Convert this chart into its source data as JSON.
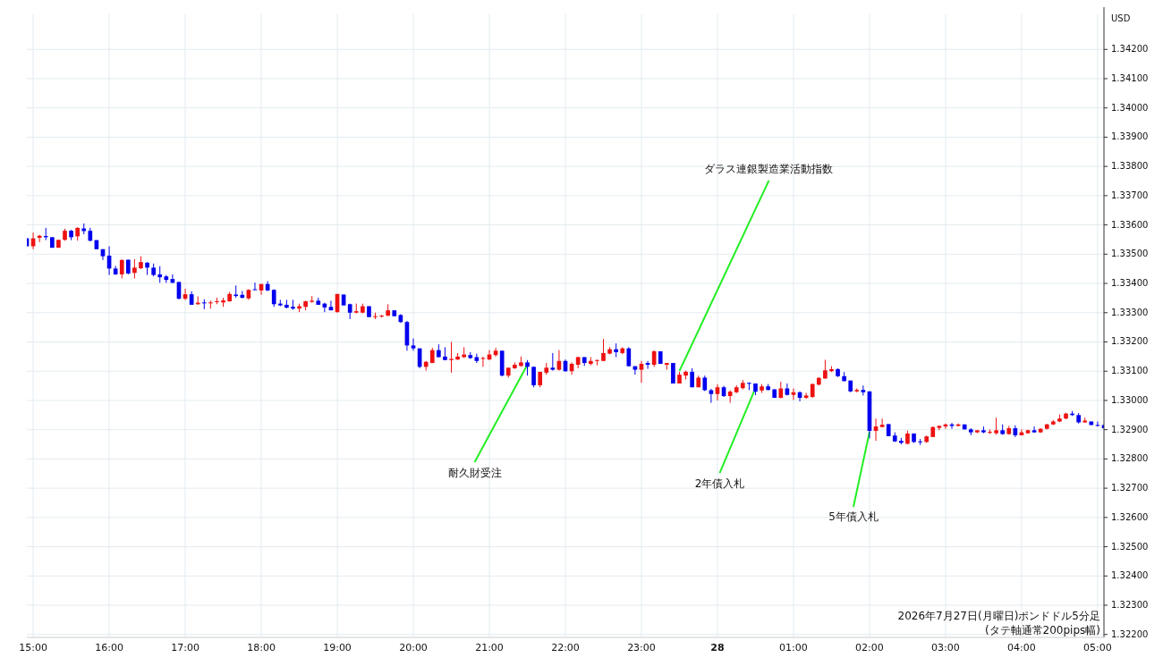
{
  "chart_data": {
    "type": "candlestick",
    "ylabel": "USD",
    "x": [
      "2026-07-27T14:55",
      "2026-07-27T15:00",
      "2026-07-27T15:05",
      "2026-07-27T15:10",
      "2026-07-27T15:15",
      "2026-07-27T15:20",
      "2026-07-27T15:25",
      "2026-07-27T15:30",
      "2026-07-27T15:35",
      "2026-07-27T15:40",
      "2026-07-27T15:45",
      "2026-07-27T15:50",
      "2026-07-27T15:55",
      "2026-07-27T16:00",
      "2026-07-27T16:05",
      "2026-07-27T16:10",
      "2026-07-27T16:15",
      "2026-07-27T16:20",
      "2026-07-27T16:25",
      "2026-07-27T16:30",
      "2026-07-27T16:35",
      "2026-07-27T16:40",
      "2026-07-27T16:45",
      "2026-07-27T16:50",
      "2026-07-27T16:55",
      "2026-07-27T17:00",
      "2026-07-27T17:05",
      "2026-07-27T17:10",
      "2026-07-27T17:15",
      "2026-07-27T17:20",
      "2026-07-27T17:25",
      "2026-07-27T17:30",
      "2026-07-27T17:35",
      "2026-07-27T17:40",
      "2026-07-27T17:45",
      "2026-07-27T17:50",
      "2026-07-27T17:55",
      "2026-07-27T18:00",
      "2026-07-27T18:05",
      "2026-07-27T18:10",
      "2026-07-27T18:15",
      "2026-07-27T18:20",
      "2026-07-27T18:25",
      "2026-07-27T18:30",
      "2026-07-27T18:35",
      "2026-07-27T18:40",
      "2026-07-27T18:45",
      "2026-07-27T18:50",
      "2026-07-27T18:55",
      "2026-07-27T19:00",
      "2026-07-27T19:05",
      "2026-07-27T19:10",
      "2026-07-27T19:15",
      "2026-07-27T19:20",
      "2026-07-27T19:25",
      "2026-07-27T19:30",
      "2026-07-27T19:35",
      "2026-07-27T19:40",
      "2026-07-27T19:45",
      "2026-07-27T19:50",
      "2026-07-27T19:55",
      "2026-07-27T20:00",
      "2026-07-27T20:05",
      "2026-07-27T20:10",
      "2026-07-27T20:15",
      "2026-07-27T20:20",
      "2026-07-27T20:25",
      "2026-07-27T20:30",
      "2026-07-27T20:35",
      "2026-07-27T20:40",
      "2026-07-27T20:45",
      "2026-07-27T20:50",
      "2026-07-27T20:55",
      "2026-07-27T21:00",
      "2026-07-27T21:05",
      "2026-07-27T21:10",
      "2026-07-27T21:15",
      "2026-07-27T21:20",
      "2026-07-27T21:25",
      "2026-07-27T21:30",
      "2026-07-27T21:35",
      "2026-07-27T21:40",
      "2026-07-27T21:45",
      "2026-07-27T21:50",
      "2026-07-27T21:55",
      "2026-07-27T22:00",
      "2026-07-27T22:05",
      "2026-07-27T22:10",
      "2026-07-27T22:15",
      "2026-07-27T22:20",
      "2026-07-27T22:25",
      "2026-07-27T22:30",
      "2026-07-27T22:35",
      "2026-07-27T22:40",
      "2026-07-27T22:45",
      "2026-07-27T22:50",
      "2026-07-27T22:55",
      "2026-07-27T23:00",
      "2026-07-27T23:05",
      "2026-07-27T23:10",
      "2026-07-27T23:15",
      "2026-07-27T23:20",
      "2026-07-27T23:25",
      "2026-07-27T23:30",
      "2026-07-27T23:35",
      "2026-07-27T23:40",
      "2026-07-27T23:45",
      "2026-07-27T23:50",
      "2026-07-27T23:55",
      "2026-07-28T00:00",
      "2026-07-28T00:05",
      "2026-07-28T00:10",
      "2026-07-28T00:15",
      "2026-07-28T00:20",
      "2026-07-28T00:25",
      "2026-07-28T00:30",
      "2026-07-28T00:35",
      "2026-07-28T00:40",
      "2026-07-28T00:45",
      "2026-07-28T00:50",
      "2026-07-28T00:55",
      "2026-07-28T01:00",
      "2026-07-28T01:05",
      "2026-07-28T01:10",
      "2026-07-28T01:15",
      "2026-07-28T01:20",
      "2026-07-28T01:25",
      "2026-07-28T01:30",
      "2026-07-28T01:35",
      "2026-07-28T01:40",
      "2026-07-28T01:45",
      "2026-07-28T01:50",
      "2026-07-28T01:55",
      "2026-07-28T02:00",
      "2026-07-28T02:05",
      "2026-07-28T02:10",
      "2026-07-28T02:15",
      "2026-07-28T02:20",
      "2026-07-28T02:25",
      "2026-07-28T02:30",
      "2026-07-28T02:35",
      "2026-07-28T02:40",
      "2026-07-28T02:45",
      "2026-07-28T02:50",
      "2026-07-28T02:55",
      "2026-07-28T03:00",
      "2026-07-28T03:05",
      "2026-07-28T03:10",
      "2026-07-28T03:15",
      "2026-07-28T03:20",
      "2026-07-28T03:25",
      "2026-07-28T03:30",
      "2026-07-28T03:35",
      "2026-07-28T03:40",
      "2026-07-28T03:45",
      "2026-07-28T03:50",
      "2026-07-28T03:55",
      "2026-07-28T04:00",
      "2026-07-28T04:05",
      "2026-07-28T04:10",
      "2026-07-28T04:15",
      "2026-07-28T04:20",
      "2026-07-28T04:25",
      "2026-07-28T04:30",
      "2026-07-28T04:35",
      "2026-07-28T04:40",
      "2026-07-28T04:45",
      "2026-07-28T04:50",
      "2026-07-28T04:55",
      "2026-07-28T05:00",
      "2026-07-28T05:05"
    ],
    "ohlc": [
      [
        1.33554,
        1.33556,
        1.33527,
        1.33527
      ],
      [
        1.33527,
        1.33574,
        1.33517,
        1.33554
      ],
      [
        1.33556,
        1.33566,
        1.33541,
        1.33563
      ],
      [
        1.33562,
        1.3359,
        1.33548,
        1.33558
      ],
      [
        1.33558,
        1.33558,
        1.33522,
        1.33522
      ],
      [
        1.33522,
        1.33549,
        1.33522,
        1.33549
      ],
      [
        1.33549,
        1.33587,
        1.33546,
        1.3358
      ],
      [
        1.3358,
        1.33583,
        1.33548,
        1.33558
      ],
      [
        1.33561,
        1.33592,
        1.33546,
        1.3359
      ],
      [
        1.33588,
        1.33605,
        1.33568,
        1.33579
      ],
      [
        1.3358,
        1.3359,
        1.33544,
        1.33546
      ],
      [
        1.33548,
        1.33548,
        1.33517,
        1.33517
      ],
      [
        1.33517,
        1.33517,
        1.3348,
        1.33493
      ],
      [
        1.33495,
        1.33527,
        1.33429,
        1.33451
      ],
      [
        1.33451,
        1.3346,
        1.33429,
        1.33431
      ],
      [
        1.33431,
        1.33483,
        1.33417,
        1.3348
      ],
      [
        1.33481,
        1.33481,
        1.33431,
        1.33434
      ],
      [
        1.33436,
        1.33483,
        1.33417,
        1.33454
      ],
      [
        1.33452,
        1.33493,
        1.33449,
        1.33473
      ],
      [
        1.33471,
        1.33473,
        1.33429,
        1.33454
      ],
      [
        1.33454,
        1.33468,
        1.33424,
        1.33429
      ],
      [
        1.33431,
        1.33459,
        1.33402,
        1.33421
      ],
      [
        1.33424,
        1.33429,
        1.33402,
        1.33412
      ],
      [
        1.33415,
        1.33431,
        1.33402,
        1.33402
      ],
      [
        1.33405,
        1.33405,
        1.33345,
        1.33348
      ],
      [
        1.33348,
        1.33382,
        1.33343,
        1.33363
      ],
      [
        1.33363,
        1.33373,
        1.33327,
        1.33327
      ],
      [
        1.33329,
        1.33356,
        1.33327,
        1.33334
      ],
      [
        1.33335,
        1.33346,
        1.33312,
        1.33332
      ],
      [
        1.33332,
        1.33341,
        1.33314,
        1.33335
      ],
      [
        1.33337,
        1.33351,
        1.33329,
        1.33339
      ],
      [
        1.33335,
        1.33351,
        1.3332,
        1.33342
      ],
      [
        1.33339,
        1.33371,
        1.33337,
        1.33364
      ],
      [
        1.33362,
        1.33393,
        1.33351,
        1.33357
      ],
      [
        1.33361,
        1.33374,
        1.33349,
        1.33351
      ],
      [
        1.33349,
        1.3338,
        1.33344,
        1.33378
      ],
      [
        1.3338,
        1.33403,
        1.33378,
        1.33378
      ],
      [
        1.33376,
        1.33398,
        1.33361,
        1.33398
      ],
      [
        1.33398,
        1.33408,
        1.33374,
        1.33376
      ],
      [
        1.33378,
        1.3338,
        1.3332,
        1.33329
      ],
      [
        1.33331,
        1.33344,
        1.33322,
        1.33325
      ],
      [
        1.33327,
        1.33344,
        1.33315,
        1.33317
      ],
      [
        1.3332,
        1.33344,
        1.3331,
        1.33314
      ],
      [
        1.33314,
        1.33331,
        1.33302,
        1.33322
      ],
      [
        1.3332,
        1.33341,
        1.33308,
        1.33339
      ],
      [
        1.33337,
        1.33357,
        1.33334,
        1.33341
      ],
      [
        1.33341,
        1.33351,
        1.33327,
        1.33327
      ],
      [
        1.33331,
        1.33334,
        1.33302,
        1.33318
      ],
      [
        1.3332,
        1.33341,
        1.33308,
        1.33308
      ],
      [
        1.33302,
        1.33364,
        1.333,
        1.33364
      ],
      [
        1.33362,
        1.33362,
        1.33325,
        1.33325
      ],
      [
        1.33329,
        1.33331,
        1.33278,
        1.333
      ],
      [
        1.333,
        1.33331,
        1.33298,
        1.33305
      ],
      [
        1.333,
        1.33331,
        1.33298,
        1.33322
      ],
      [
        1.33322,
        1.33322,
        1.33285,
        1.33285
      ],
      [
        1.33285,
        1.333,
        1.33278,
        1.33288
      ],
      [
        1.33287,
        1.33292,
        1.33283,
        1.3329
      ],
      [
        1.3329,
        1.33329,
        1.33288,
        1.33308
      ],
      [
        1.33308,
        1.33308,
        1.33288,
        1.33288
      ],
      [
        1.33292,
        1.33295,
        1.33265,
        1.33268
      ],
      [
        1.33268,
        1.33272,
        1.3317,
        1.33188
      ],
      [
        1.33188,
        1.33212,
        1.3317,
        1.33178
      ],
      [
        1.33178,
        1.33178,
        1.3311,
        1.33115
      ],
      [
        1.33115,
        1.33135,
        1.33102,
        1.33132
      ],
      [
        1.33128,
        1.3318,
        1.33128,
        1.33172
      ],
      [
        1.33172,
        1.33192,
        1.33148,
        1.33148
      ],
      [
        1.3315,
        1.33182,
        1.33138,
        1.33138
      ],
      [
        1.33138,
        1.332,
        1.33095,
        1.33142
      ],
      [
        1.3314,
        1.33162,
        1.33138,
        1.3315
      ],
      [
        1.33148,
        1.33182,
        1.33145,
        1.33157
      ],
      [
        1.33155,
        1.33165,
        1.33142,
        1.33145
      ],
      [
        1.33148,
        1.3316,
        1.33128,
        1.33135
      ],
      [
        1.33142,
        1.3315,
        1.33115,
        1.33145
      ],
      [
        1.3314,
        1.33172,
        1.33138,
        1.33157
      ],
      [
        1.33155,
        1.3318,
        1.3315,
        1.3317
      ],
      [
        1.3317,
        1.3317,
        1.33082,
        1.33085
      ],
      [
        1.33085,
        1.33112,
        1.33078,
        1.33112
      ],
      [
        1.3311,
        1.3313,
        1.33108,
        1.33122
      ],
      [
        1.33118,
        1.3315,
        1.33115,
        1.3313
      ],
      [
        1.3313,
        1.33138,
        1.33085,
        1.33115
      ],
      [
        1.33115,
        1.33115,
        1.33045,
        1.33052
      ],
      [
        1.33052,
        1.33098,
        1.33045,
        1.33098
      ],
      [
        1.33095,
        1.33128,
        1.33088,
        1.33112
      ],
      [
        1.33112,
        1.33162,
        1.33102,
        1.33105
      ],
      [
        1.33105,
        1.33172,
        1.33102,
        1.33135
      ],
      [
        1.33135,
        1.3314,
        1.33098,
        1.331
      ],
      [
        1.331,
        1.3313,
        1.33088,
        1.33125
      ],
      [
        1.33122,
        1.3315,
        1.3311,
        1.33148
      ],
      [
        1.33148,
        1.33148,
        1.33118,
        1.33128
      ],
      [
        1.33125,
        1.33148,
        1.3312,
        1.33135
      ],
      [
        1.33135,
        1.3314,
        1.3312,
        1.33138
      ],
      [
        1.33135,
        1.3321,
        1.33135,
        1.33162
      ],
      [
        1.3316,
        1.33182,
        1.33158,
        1.33175
      ],
      [
        1.33175,
        1.33195,
        1.33148,
        1.33165
      ],
      [
        1.33162,
        1.33182,
        1.33158,
        1.33178
      ],
      [
        1.33178,
        1.33182,
        1.33117,
        1.33117
      ],
      [
        1.33117,
        1.33117,
        1.33088,
        1.33105
      ],
      [
        1.33105,
        1.33135,
        1.3306,
        1.33125
      ],
      [
        1.33128,
        1.33135,
        1.33108,
        1.33122
      ],
      [
        1.33122,
        1.33172,
        1.33115,
        1.33168
      ],
      [
        1.33168,
        1.33168,
        1.33125,
        1.33125
      ],
      [
        1.33122,
        1.33128,
        1.33105,
        1.33128
      ],
      [
        1.33128,
        1.33128,
        1.33058,
        1.33058
      ],
      [
        1.33058,
        1.33098,
        1.33058,
        1.33088
      ],
      [
        1.33085,
        1.33102,
        1.33072,
        1.33098
      ],
      [
        1.33098,
        1.3311,
        1.33045,
        1.33045
      ],
      [
        1.33045,
        1.33085,
        1.33045,
        1.33078
      ],
      [
        1.33078,
        1.33085,
        1.33032,
        1.33035
      ],
      [
        1.33035,
        1.3304,
        1.32992,
        1.33022
      ],
      [
        1.33022,
        1.33055,
        1.33,
        1.33045
      ],
      [
        1.33045,
        1.3305,
        1.33012,
        1.33015
      ],
      [
        1.33015,
        1.33035,
        1.32992,
        1.3303
      ],
      [
        1.33028,
        1.33052,
        1.33025,
        1.33045
      ],
      [
        1.33042,
        1.3307,
        1.33038,
        1.3306
      ],
      [
        1.3306,
        1.33062,
        1.33035,
        1.33058
      ],
      [
        1.33058,
        1.33058,
        1.33018,
        1.3303
      ],
      [
        1.33034,
        1.33056,
        1.33026,
        1.33048
      ],
      [
        1.33048,
        1.33056,
        1.33034,
        1.33036
      ],
      [
        1.33038,
        1.33038,
        1.33009,
        1.33009
      ],
      [
        1.33009,
        1.33064,
        1.33007,
        1.33041
      ],
      [
        1.33041,
        1.33058,
        1.33017,
        1.33019
      ],
      [
        1.33019,
        1.33041,
        1.33002,
        1.33028
      ],
      [
        1.33028,
        1.33031,
        1.32997,
        1.33009
      ],
      [
        1.33009,
        1.33026,
        1.33005,
        1.33017
      ],
      [
        1.33012,
        1.33058,
        1.33009,
        1.33056
      ],
      [
        1.33054,
        1.3308,
        1.33051,
        1.33077
      ],
      [
        1.33075,
        1.33139,
        1.33074,
        1.33103
      ],
      [
        1.331,
        1.33117,
        1.33097,
        1.33107
      ],
      [
        1.33107,
        1.3311,
        1.3308,
        1.33083
      ],
      [
        1.33083,
        1.33097,
        1.33066,
        1.33066
      ],
      [
        1.33068,
        1.33068,
        1.33028,
        1.33031
      ],
      [
        1.33031,
        1.33041,
        1.33028,
        1.33036
      ],
      [
        1.33036,
        1.33051,
        1.33017,
        1.33028
      ],
      [
        1.33031,
        1.33031,
        1.3287,
        1.32896
      ],
      [
        1.32896,
        1.32938,
        1.32862,
        1.32911
      ],
      [
        1.32909,
        1.32938,
        1.32909,
        1.32917
      ],
      [
        1.32919,
        1.32919,
        1.32878,
        1.32878
      ],
      [
        1.3288,
        1.32891,
        1.32858,
        1.3286
      ],
      [
        1.32862,
        1.32872,
        1.3285,
        1.32855
      ],
      [
        1.32852,
        1.32897,
        1.3285,
        1.32887
      ],
      [
        1.32887,
        1.32887,
        1.32855,
        1.32858
      ],
      [
        1.3286,
        1.32868,
        1.32848,
        1.32858
      ],
      [
        1.32858,
        1.3288,
        1.32855,
        1.32877
      ],
      [
        1.32875,
        1.32911,
        1.32875,
        1.32909
      ],
      [
        1.32906,
        1.32915,
        1.32898,
        1.32913
      ],
      [
        1.32911,
        1.32921,
        1.32903,
        1.32918
      ],
      [
        1.32918,
        1.32923,
        1.32903,
        1.32913
      ],
      [
        1.32913,
        1.32921,
        1.32911,
        1.32918
      ],
      [
        1.32918,
        1.32918,
        1.32901,
        1.32901
      ],
      [
        1.32901,
        1.32905,
        1.32881,
        1.32891
      ],
      [
        1.32891,
        1.32898,
        1.32888,
        1.32898
      ],
      [
        1.32898,
        1.32911,
        1.32888,
        1.32891
      ],
      [
        1.3289,
        1.32901,
        1.32885,
        1.32893
      ],
      [
        1.32888,
        1.32941,
        1.32883,
        1.32898
      ],
      [
        1.32898,
        1.32918,
        1.32883,
        1.32885
      ],
      [
        1.32885,
        1.32913,
        1.32883,
        1.32905
      ],
      [
        1.32905,
        1.32915,
        1.32875,
        1.32881
      ],
      [
        1.32881,
        1.32901,
        1.32881,
        1.32891
      ],
      [
        1.32888,
        1.329,
        1.32886,
        1.32898
      ],
      [
        1.32898,
        1.32911,
        1.32889,
        1.32891
      ],
      [
        1.32891,
        1.32905,
        1.32889,
        1.32903
      ],
      [
        1.32903,
        1.3292,
        1.32901,
        1.32918
      ],
      [
        1.32918,
        1.32933,
        1.32916,
        1.32928
      ],
      [
        1.32928,
        1.32952,
        1.32926,
        1.32938
      ],
      [
        1.32938,
        1.32958,
        1.32936,
        1.32955
      ],
      [
        1.32955,
        1.32964,
        1.32947,
        1.3295
      ],
      [
        1.3295,
        1.32957,
        1.32921,
        1.32925
      ],
      [
        1.32925,
        1.32941,
        1.32923,
        1.32931
      ],
      [
        1.32928,
        1.32928,
        1.32916,
        1.32916
      ],
      [
        1.32916,
        1.32928,
        1.32911,
        1.32913
      ],
      [
        1.32916,
        1.32918,
        1.32905,
        1.32905
      ]
    ],
    "xlim": [
      "2026-07-27T14:55",
      "2026-07-28T05:05"
    ],
    "xticks": [
      {
        "value": "2026-07-27T15:00",
        "label": "15:00"
      },
      {
        "value": "2026-07-27T16:00",
        "label": "16:00"
      },
      {
        "value": "2026-07-27T17:00",
        "label": "17:00"
      },
      {
        "value": "2026-07-27T18:00",
        "label": "18:00"
      },
      {
        "value": "2026-07-27T19:00",
        "label": "19:00"
      },
      {
        "value": "2026-07-27T20:00",
        "label": "20:00"
      },
      {
        "value": "2026-07-27T21:00",
        "label": "21:00"
      },
      {
        "value": "2026-07-27T22:00",
        "label": "22:00"
      },
      {
        "value": "2026-07-27T23:00",
        "label": "23:00"
      },
      {
        "value": "2026-07-28T00:00",
        "label": "28"
      },
      {
        "value": "2026-07-28T01:00",
        "label": "01:00"
      },
      {
        "value": "2026-07-28T02:00",
        "label": "02:00"
      },
      {
        "value": "2026-07-28T03:00",
        "label": "03:00"
      },
      {
        "value": "2026-07-28T04:00",
        "label": "04:00"
      },
      {
        "value": "2026-07-28T05:00",
        "label": "05:00"
      }
    ],
    "ylim": [
      1.3219,
      1.3432
    ],
    "yticks": [
      {
        "value": 1.322,
        "label": "1.32200"
      },
      {
        "value": 1.323,
        "label": "1.32300"
      },
      {
        "value": 1.324,
        "label": "1.32400"
      },
      {
        "value": 1.325,
        "label": "1.32500"
      },
      {
        "value": 1.326,
        "label": "1.32600"
      },
      {
        "value": 1.327,
        "label": "1.32700"
      },
      {
        "value": 1.328,
        "label": "1.32800"
      },
      {
        "value": 1.329,
        "label": "1.32900"
      },
      {
        "value": 1.33,
        "label": "1.33000"
      },
      {
        "value": 1.331,
        "label": "1.33100"
      },
      {
        "value": 1.332,
        "label": "1.33200"
      },
      {
        "value": 1.333,
        "label": "1.33300"
      },
      {
        "value": 1.334,
        "label": "1.33400"
      },
      {
        "value": 1.335,
        "label": "1.33500"
      },
      {
        "value": 1.336,
        "label": "1.33600"
      },
      {
        "value": 1.337,
        "label": "1.33700"
      },
      {
        "value": 1.338,
        "label": "1.33800"
      },
      {
        "value": 1.339,
        "label": "1.33900"
      },
      {
        "value": 1.34,
        "label": "1.34000"
      },
      {
        "value": 1.341,
        "label": "1.34100"
      },
      {
        "value": 1.342,
        "label": "1.34200"
      }
    ],
    "grid": true,
    "annotations": [
      {
        "text": "耐久財受注",
        "x": "2026-07-27T21:30",
        "y": 1.33122
      },
      {
        "text": "ダラス連銀製造業活動指数",
        "x": "2026-07-27T23:30",
        "y": 1.33101
      },
      {
        "text": "2年債入札",
        "x": "2026-07-28T00:30",
        "y": 1.33042
      },
      {
        "text": "5年債入札",
        "x": "2026-07-28T02:00",
        "y": 1.32893
      },
      "2026年7月27日(月曜日)ポンドドル5分足",
      "(タテ軸通常200pips幅)"
    ]
  }
}
